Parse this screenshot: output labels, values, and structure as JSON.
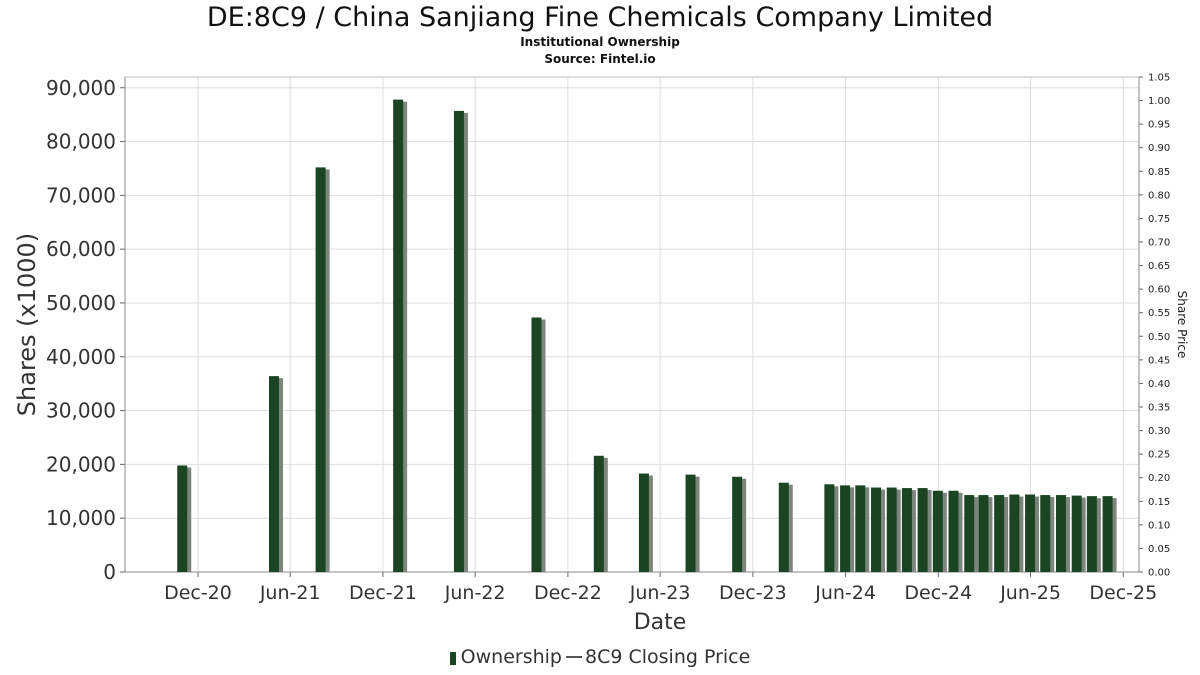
{
  "chart_data": {
    "type": "bar",
    "title": "DE:8C9 / China Sanjiang Fine Chemicals Company Limited",
    "subtitle_lines": [
      "Institutional Ownership",
      "Source: Fintel.io"
    ],
    "xlabel": "Date",
    "ylabel": "Shares (x1000)",
    "y2label": "Share Price",
    "ylim": [
      0,
      92000
    ],
    "y2lim": [
      0,
      1.05
    ],
    "yticks": [
      "0",
      "10,000",
      "20,000",
      "30,000",
      "40,000",
      "50,000",
      "60,000",
      "70,000",
      "80,000",
      "90,000"
    ],
    "y2ticks": [
      "0.00",
      "0.05",
      "0.10",
      "0.15",
      "0.20",
      "0.25",
      "0.30",
      "0.35",
      "0.40",
      "0.45",
      "0.50",
      "0.55",
      "0.60",
      "0.65",
      "0.70",
      "0.75",
      "0.80",
      "0.85",
      "0.90",
      "0.95",
      "1.00",
      "1.05"
    ],
    "xticks": [
      {
        "label": "Dec-20",
        "date": "2020-12-01"
      },
      {
        "label": "Jun-21",
        "date": "2021-06-01"
      },
      {
        "label": "Dec-21",
        "date": "2021-12-01"
      },
      {
        "label": "Jun-22",
        "date": "2022-06-01"
      },
      {
        "label": "Dec-22",
        "date": "2022-12-01"
      },
      {
        "label": "Jun-23",
        "date": "2023-06-01"
      },
      {
        "label": "Dec-23",
        "date": "2023-12-01"
      },
      {
        "label": "Jun-24",
        "date": "2024-06-01"
      },
      {
        "label": "Dec-24",
        "date": "2024-12-01"
      },
      {
        "label": "Jun-25",
        "date": "2025-06-01"
      },
      {
        "label": "Dec-25",
        "date": "2025-12-01"
      }
    ],
    "series": [
      {
        "name": "Ownership",
        "color": "#1b4423",
        "points": [
          {
            "date": "2020-10-31",
            "value": 19800
          },
          {
            "date": "2021-04-30",
            "value": 36400
          },
          {
            "date": "2021-07-31",
            "value": 75200
          },
          {
            "date": "2021-12-31",
            "value": 87800
          },
          {
            "date": "2022-04-30",
            "value": 85700
          },
          {
            "date": "2022-09-30",
            "value": 47300
          },
          {
            "date": "2023-01-31",
            "value": 21600
          },
          {
            "date": "2023-04-30",
            "value": 18300
          },
          {
            "date": "2023-07-31",
            "value": 18100
          },
          {
            "date": "2023-10-31",
            "value": 17700
          },
          {
            "date": "2024-01-31",
            "value": 16600
          },
          {
            "date": "2024-04-30",
            "value": 16300
          },
          {
            "date": "2024-05-31",
            "value": 16100
          },
          {
            "date": "2024-06-30",
            "value": 16100
          },
          {
            "date": "2024-07-31",
            "value": 15700
          },
          {
            "date": "2024-08-31",
            "value": 15700
          },
          {
            "date": "2024-09-30",
            "value": 15600
          },
          {
            "date": "2024-10-31",
            "value": 15600
          },
          {
            "date": "2024-11-30",
            "value": 15100
          },
          {
            "date": "2024-12-31",
            "value": 15100
          },
          {
            "date": "2025-01-31",
            "value": 14300
          },
          {
            "date": "2025-02-28",
            "value": 14300
          },
          {
            "date": "2025-03-31",
            "value": 14300
          },
          {
            "date": "2025-04-30",
            "value": 14400
          },
          {
            "date": "2025-05-31",
            "value": 14400
          },
          {
            "date": "2025-06-30",
            "value": 14300
          },
          {
            "date": "2025-07-31",
            "value": 14300
          },
          {
            "date": "2025-08-31",
            "value": 14200
          },
          {
            "date": "2025-09-30",
            "value": 14100
          },
          {
            "date": "2025-10-31",
            "value": 14100
          }
        ]
      },
      {
        "name": "8C9 Closing Price",
        "color": "#555555",
        "points": []
      }
    ],
    "grid": true,
    "legend_position": "bottom-center"
  },
  "legend": {
    "ownership_label": "Ownership",
    "price_label": "8C9 Closing Price"
  }
}
